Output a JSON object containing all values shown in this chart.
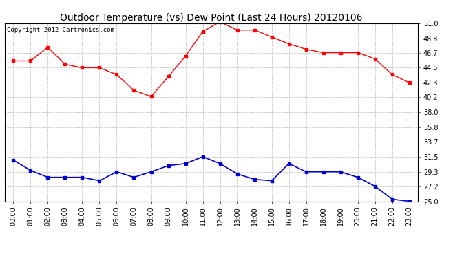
{
  "title": "Outdoor Temperature (vs) Dew Point (Last 24 Hours) 20120106",
  "copyright": "Copyright 2012 Cartronics.com",
  "hours": [
    "00:00",
    "01:00",
    "02:00",
    "03:00",
    "04:00",
    "05:00",
    "06:00",
    "07:00",
    "08:00",
    "09:00",
    "10:00",
    "11:00",
    "12:00",
    "13:00",
    "14:00",
    "15:00",
    "16:00",
    "17:00",
    "18:00",
    "19:00",
    "20:00",
    "21:00",
    "22:00",
    "23:00"
  ],
  "temp": [
    45.5,
    45.5,
    47.5,
    45.0,
    44.5,
    44.5,
    43.5,
    41.2,
    40.3,
    43.2,
    46.2,
    49.8,
    51.2,
    50.0,
    50.0,
    49.0,
    48.0,
    47.2,
    46.7,
    46.7,
    46.7,
    45.8,
    43.5,
    42.3
  ],
  "dew": [
    31.0,
    29.5,
    28.5,
    28.5,
    28.5,
    28.0,
    29.3,
    28.5,
    29.3,
    30.2,
    30.5,
    31.5,
    30.5,
    29.0,
    28.2,
    28.0,
    30.5,
    29.3,
    29.3,
    29.3,
    28.5,
    27.2,
    25.3,
    25.0
  ],
  "temp_color": "#ff0000",
  "dew_color": "#0000cc",
  "bg_color": "#ffffff",
  "plot_bg": "#ffffff",
  "grid_color": "#bbbbbb",
  "ylim_min": 25.0,
  "ylim_max": 51.0,
  "yticks": [
    25.0,
    27.2,
    29.3,
    31.5,
    33.7,
    35.8,
    38.0,
    40.2,
    42.3,
    44.5,
    46.7,
    48.8,
    51.0
  ],
  "title_fontsize": 10,
  "tick_fontsize": 7,
  "copyright_fontsize": 6.5
}
